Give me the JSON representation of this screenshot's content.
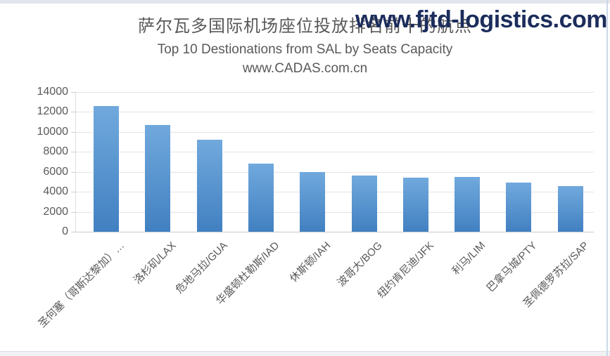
{
  "watermark": "www.fjtd-logistics.com",
  "header": {
    "title": "萨尔瓦多国际机场座位投放排名前十的航点",
    "subtitle": "Top 10 Destionations from SAL by Seats Capacity",
    "source": "www.CADAS.com.cn"
  },
  "colors": {
    "text": "#595959",
    "watermark": "#1c2d5c",
    "bar_gradient_top": "#71a9dd",
    "bar_gradient_bottom": "#4180c1",
    "gridline": "#e4e4e4"
  },
  "chart_data": {
    "type": "bar",
    "title": "萨尔瓦多国际机场座位投放排名前十的航点",
    "subtitle": "Top 10 Destionations from SAL by Seats Capacity",
    "source_line": "www.CADAS.com.cn",
    "categories": [
      "圣何塞（哥斯达黎加）…",
      "洛杉矶/LAX",
      "危地马拉/GUA",
      "华盛顿杜勒斯/IAD",
      "休斯顿/IAH",
      "波哥大/BOG",
      "纽约肯尼迪/JFK",
      "利马/LIM",
      "巴拿马城/PTY",
      "圣佩德罗苏拉/SAP"
    ],
    "values": [
      12600,
      10700,
      9200,
      6800,
      6000,
      5650,
      5400,
      5500,
      4950,
      4550
    ],
    "xlabel": "",
    "ylabel": "",
    "ylim": [
      0,
      14000
    ],
    "ytick_interval": 2000,
    "ytick_labels": [
      "0",
      "2000",
      "4000",
      "6000",
      "8000",
      "10000",
      "12000",
      "14000"
    ],
    "grid": true,
    "legend": false,
    "x_labels_rotation_deg": 45
  }
}
